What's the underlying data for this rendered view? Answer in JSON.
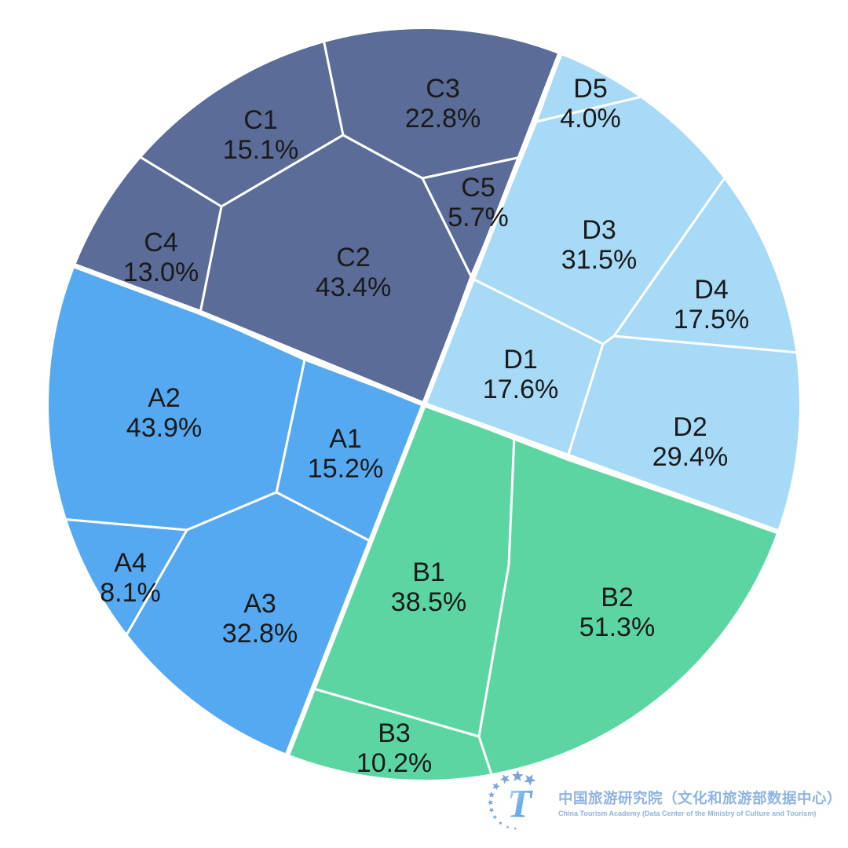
{
  "chart_data": {
    "type": "voronoi-treemap",
    "title": "",
    "unit": "%",
    "background": "#ffffff",
    "label_color": "#1a1a1a",
    "border_color": "#ffffff",
    "legend_position": "none",
    "groups": [
      {
        "name": "A",
        "color": "#54a9f1",
        "cells": [
          {
            "label": "A1",
            "value": 15.2,
            "display": "15.2%"
          },
          {
            "label": "A2",
            "value": 43.9,
            "display": "43.9%"
          },
          {
            "label": "A3",
            "value": 32.8,
            "display": "32.8%"
          },
          {
            "label": "A4",
            "value": 8.1,
            "display": "8.1%"
          }
        ]
      },
      {
        "name": "B",
        "color": "#5bd6a3",
        "cells": [
          {
            "label": "B1",
            "value": 38.5,
            "display": "38.5%"
          },
          {
            "label": "B2",
            "value": 51.3,
            "display": "51.3%"
          },
          {
            "label": "B3",
            "value": 10.2,
            "display": "10.2%"
          }
        ]
      },
      {
        "name": "C",
        "color": "#5c6c98",
        "cells": [
          {
            "label": "C1",
            "value": 15.1,
            "display": "15.1%"
          },
          {
            "label": "C2",
            "value": 43.4,
            "display": "43.4%"
          },
          {
            "label": "C3",
            "value": 22.8,
            "display": "22.8%"
          },
          {
            "label": "C4",
            "value": 13.0,
            "display": "13.0%"
          },
          {
            "label": "C5",
            "value": 5.7,
            "display": "5.7%"
          }
        ]
      },
      {
        "name": "D",
        "color": "#a7daf6",
        "cells": [
          {
            "label": "D1",
            "value": 17.6,
            "display": "17.6%"
          },
          {
            "label": "D2",
            "value": 29.4,
            "display": "29.4%"
          },
          {
            "label": "D3",
            "value": 31.5,
            "display": "31.5%"
          },
          {
            "label": "D4",
            "value": 17.5,
            "display": "17.5%"
          },
          {
            "label": "D5",
            "value": 4.0,
            "display": "4.0%"
          }
        ]
      }
    ]
  },
  "footer": {
    "logo_icon": "star-circle-t-emblem",
    "logo_t": "T",
    "logo_title_zh": "中国旅游研究院（文化和旅游部数据中心）",
    "logo_title_en": "China Tourism Academy (Data Center of the Ministry of Culture and Tourism)",
    "logo_text_color": "#8fb4e2",
    "logo_star_color": "#7da3d9"
  }
}
